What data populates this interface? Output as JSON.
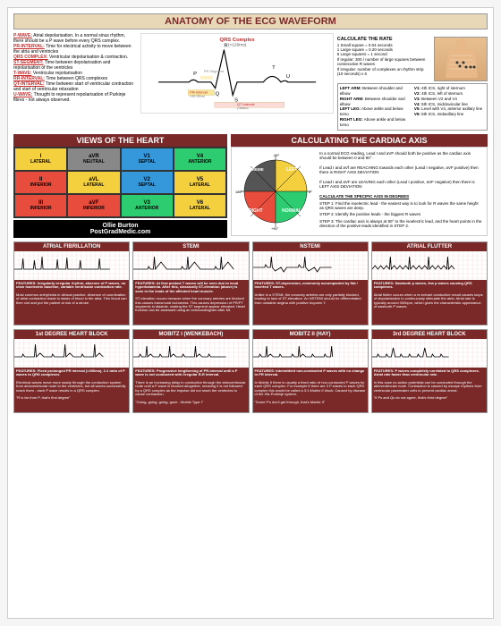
{
  "main_title": "ANATOMY OF THE ECG WAVEFORM",
  "definitions": [
    {
      "term": "P-WAVE:",
      "text": "Atrial depolarisation. In a normal sinus rhythm, there should be a P wave before every QRS complex."
    },
    {
      "term": "PR-INTERVAL:",
      "text": "Time for electrical activity to move between the atria and ventricles"
    },
    {
      "term": "QRS COMPLEX:",
      "text": "Ventricular depolarisation & contraction."
    },
    {
      "term": "ST-SEGMENT:",
      "text": "Time between depolarisation and repolarisation of the ventricles"
    },
    {
      "term": "T-WAVE:",
      "text": "Ventricular repolarisation"
    },
    {
      "term": "RR-INTERVAL:",
      "text": "Time between QRS complexes"
    },
    {
      "term": "QT-INTERVAL:",
      "text": "Time between start of ventricular contraction and start of ventricular relaxation"
    },
    {
      "term": "U-WAVE:",
      "text": "Thought to represent repolarisation of Purkinje fibres - not always observed."
    }
  ],
  "qrs_label": "QRS Complex",
  "qrs_time": "(<120ms)",
  "pr_seg": "PR Segment",
  "pr_int": "PR-Interval",
  "pr_time": "(120-200ms)",
  "qt_int": "QT-Interval",
  "qt_time": "(<400ms)",
  "rate_title": "CALCULATE THE RATE",
  "rate_lines": [
    "1 Small square = 0.04 seconds",
    "1 Large square = 0.20 seconds",
    "5 Large squares = 1 second",
    "If regular: 300 / number of large squares between consecutive R waves",
    "If irregular: number of complexes on rhythm strip (10 seconds) x 6"
  ],
  "limbs": [
    {
      "label": "LEFT ARM:",
      "text": "Between shoulder and elbow"
    },
    {
      "label": "RIGHT ARM:",
      "text": "Between shoulder and elbow"
    },
    {
      "label": "LEFT LEG:",
      "text": "Above ankle and below torso"
    },
    {
      "label": "RIGHT LEG:",
      "text": "Above ankle and below torso"
    }
  ],
  "chest_leads": [
    "V1: 4th ICS, right of sternum",
    "V2: 4th ICS, left of sternum",
    "V3: Between V2 and V4",
    "V4: 5th ICS, midclavicular line",
    "V5: Level with V4, anterior axillary line",
    "V6: 5th ICS, midaxillary line"
  ],
  "views_title": "VIEWS OF THE HEART",
  "views": [
    {
      "l": "I",
      "t": "LATERAL",
      "c": "#f4d03f"
    },
    {
      "l": "aVR",
      "t": "NEUTRAL",
      "c": "#888"
    },
    {
      "l": "V1",
      "t": "SEPTAL",
      "c": "#3498db"
    },
    {
      "l": "V4",
      "t": "ANTERIOR",
      "c": "#2ecc71"
    },
    {
      "l": "II",
      "t": "INFERIOR",
      "c": "#e74c3c"
    },
    {
      "l": "aVL",
      "t": "LATERAL",
      "c": "#f4d03f"
    },
    {
      "l": "V2",
      "t": "SEPTAL",
      "c": "#3498db"
    },
    {
      "l": "V5",
      "t": "LATERAL",
      "c": "#f4d03f"
    },
    {
      "l": "III",
      "t": "INFERIOR",
      "c": "#e74c3c"
    },
    {
      "l": "aVF",
      "t": "INFERIOR",
      "c": "#e74c3c"
    },
    {
      "l": "V3",
      "t": "ANTERIOR",
      "c": "#2ecc71"
    },
    {
      "l": "V6",
      "t": "LATERAL",
      "c": "#f4d03f"
    }
  ],
  "axis_title": "CALCULATING THE CARDIAC AXIS",
  "axis_intro": "In a normal ECG reading, Lead I and aVF should both be positive as the cardiac axis should be between 0 and 90°.",
  "axis_reach": "If Lead I and aVf are REACHING towards each other (Lead I negative, aVF positive) then there is RIGHT AXIS DEVIATION",
  "axis_leave": "If Lead I and aVF are LEAVING each other (Lead I positive, aVF negative) then there is LEFT AXIS DEVIATION",
  "axis_calc_title": "CALCULATE THE SPECIFIC AXIS IN DEGREES",
  "axis_steps": [
    "STEP 1: Find the isoelectric lead - the easiest way is to look for R waves the same height as QRS waves are deep.",
    "STEP 2: Identify the positive leads - the biggest R waves",
    "STEP 3: The cardiac axis is always at 90° to the isoelectric lead, and the heart points in the direction of the positive leads identified in STEP 2."
  ],
  "credit_name": "Ollie Burton",
  "credit_site": "PostGradMedic.com",
  "wheel_labels": [
    "LEFT",
    "EXTREME",
    "NORMAL",
    "RIGHT"
  ],
  "wheel_colors": [
    "#f4d03f",
    "#555",
    "#2ecc71",
    "#e74c3c"
  ],
  "rhythms1": [
    {
      "title": "ATRIAL FIBRILLATION",
      "feat": "FEATURES: Irregularly irregular rhythm, absence of P waves, no clear isoelectric baseline, variable ventricular contraction rate.",
      "body": "Most common arrhythmia in clinical practice. Absence of coordination of atrial contraction leads to stasis of blood in the atria. This blood can then clot and put the patient at risk of a stroke."
    },
    {
      "title": "STEMI",
      "feat": "FEATURES: At first peaked T waves will be seen due to local hyperkalaemia. After this, classically ST-elevation (above) is seen in the leads of the affected heart muscle.",
      "body": "ST-elevation occurs because when the coronary arteries are blocked this causes transmural ischaemia. This causes depression of PR/PT segments in diastole, making the ST segment appear elevated. Heart function can be assessed using an echocardiogram after MI."
    },
    {
      "title": "NSTEMI",
      "feat": "FEATURES: ST-depression, commonly accompanied by flat / inverted T waves.",
      "body": "Unlike in a STEMI, the coronary arteries are only partially blocked, leading to lack of ST-elevation. An NSTEMI should be differentiated from unstable angina with positive troponin T."
    },
    {
      "title": "ATRIAL FLUTTER",
      "feat": "FEATURES: Sawtooth p waves, few p waves causing QRS complexes.",
      "body": "Atrial flutter occurs when a re-entrant conductive circuit causes loops of depolarisation to continuously stimulate the atria. Atrial rate is typically around 300bpm, which gives the characteristic appearance of sawtooth P waves."
    }
  ],
  "rhythms2": [
    {
      "title": "1st DEGREE HEART BLOCK",
      "feat": "FEATURES: Fixed prolonged PR interval (>200ms), 1:1 ratio of P waves to QRS complexes",
      "body": "Electrical waves move more slowly through the conduction system from atrioventricular node to the ventricles, but all waves successfully reach them - each P wave results in a QRS complex.\n\n\"R is far from P, that's first degree\""
    },
    {
      "title": "MOBITZ I (WENKEBACH)",
      "feat": "FEATURES: Progressive lengthening of PR-interval until a P wave is not conducted with irregular R-R interval.",
      "body": "There is an increasing delay in conduction through the atrioventricular node until a P wave is blocked altogether, meaning it is not followed by a QRS complex as the impulse did not reach the ventricles to cause contraction.\n\n\"Going, going, going, gone - Mobitz Type I\""
    },
    {
      "title": "MOBITZ II (HAY)",
      "feat": "FEATURES: Intermittent non-conducted P waves with no change in PR interval.",
      "body": "In Mobitz II there is usually a fixed ratio of non-conducted P waves for each QRS complex. For example if there are 3 P waves to each QRS complex this would be called a 3:1 Mobitz II block. Caused by disease of the His-Purkinje system.\n\n\"Some P's don't get through, that's Mobitz II\""
    },
    {
      "title": "3rd DEGREE HEART BLOCK",
      "feat": "FEATURES: P waves completely unrelated to QRS complexes. Atrial rate faster than ventricular rate.",
      "body": "In this case no action potentials can be conducted through the atrioventricular node. Contraction is caused by escape rhythms from ventricular pacemaker cells to prevent cardiac arrest.\n\n\"If Ps and Qs do not agree, that's third degree\""
    }
  ]
}
